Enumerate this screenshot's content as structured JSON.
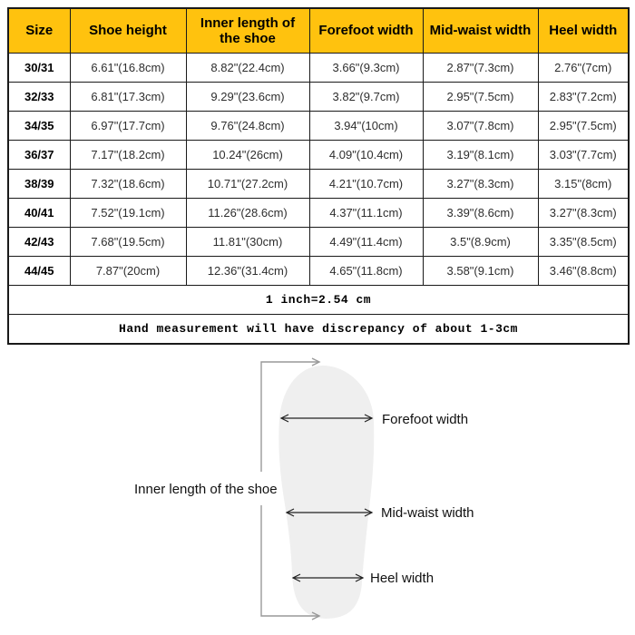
{
  "chart_data": {
    "type": "table",
    "columns": [
      "Size",
      "Shoe height",
      "Inner length of the shoe",
      "Forefoot width",
      "Mid-waist width",
      "Heel width"
    ],
    "rows": [
      [
        "30/31",
        "6.61\"(16.8cm)",
        "8.82\"(22.4cm)",
        "3.66\"(9.3cm)",
        "2.87\"(7.3cm)",
        "2.76\"(7cm)"
      ],
      [
        "32/33",
        "6.81\"(17.3cm)",
        "9.29\"(23.6cm)",
        "3.82\"(9.7cm)",
        "2.95\"(7.5cm)",
        "2.83\"(7.2cm)"
      ],
      [
        "34/35",
        "6.97\"(17.7cm)",
        "9.76\"(24.8cm)",
        "3.94\"(10cm)",
        "3.07\"(7.8cm)",
        "2.95\"(7.5cm)"
      ],
      [
        "36/37",
        "7.17\"(18.2cm)",
        "10.24\"(26cm)",
        "4.09\"(10.4cm)",
        "3.19\"(8.1cm)",
        "3.03\"(7.7cm)"
      ],
      [
        "38/39",
        "7.32\"(18.6cm)",
        "10.71\"(27.2cm)",
        "4.21\"(10.7cm)",
        "3.27\"(8.3cm)",
        "3.15\"(8cm)"
      ],
      [
        "40/41",
        "7.52\"(19.1cm)",
        "11.26\"(28.6cm)",
        "4.37\"(11.1cm)",
        "3.39\"(8.6cm)",
        "3.27\"(8.3cm)"
      ],
      [
        "42/43",
        "7.68\"(19.5cm)",
        "11.81\"(30cm)",
        "4.49\"(11.4cm)",
        "3.5\"(8.9cm)",
        "3.35\"(8.5cm)"
      ],
      [
        "44/45",
        "7.87\"(20cm)",
        "12.36\"(31.4cm)",
        "4.65\"(11.8cm)",
        "3.58\"(9.1cm)",
        "3.46\"(8.8cm)"
      ]
    ],
    "notes": [
      "1 inch=2.54 cm",
      "Hand measurement will have discrepancy of about 1-3cm"
    ]
  },
  "diagram": {
    "inner_length_label": "Inner length of the shoe",
    "forefoot_label": "Forefoot width",
    "midwaist_label": "Mid-waist width",
    "heel_label": "Heel width"
  },
  "colors": {
    "header_bg": "#FFC20E",
    "table_border": "#1A1A1A",
    "insole_fill": "#EFEFEF",
    "guide_line": "#999999"
  }
}
